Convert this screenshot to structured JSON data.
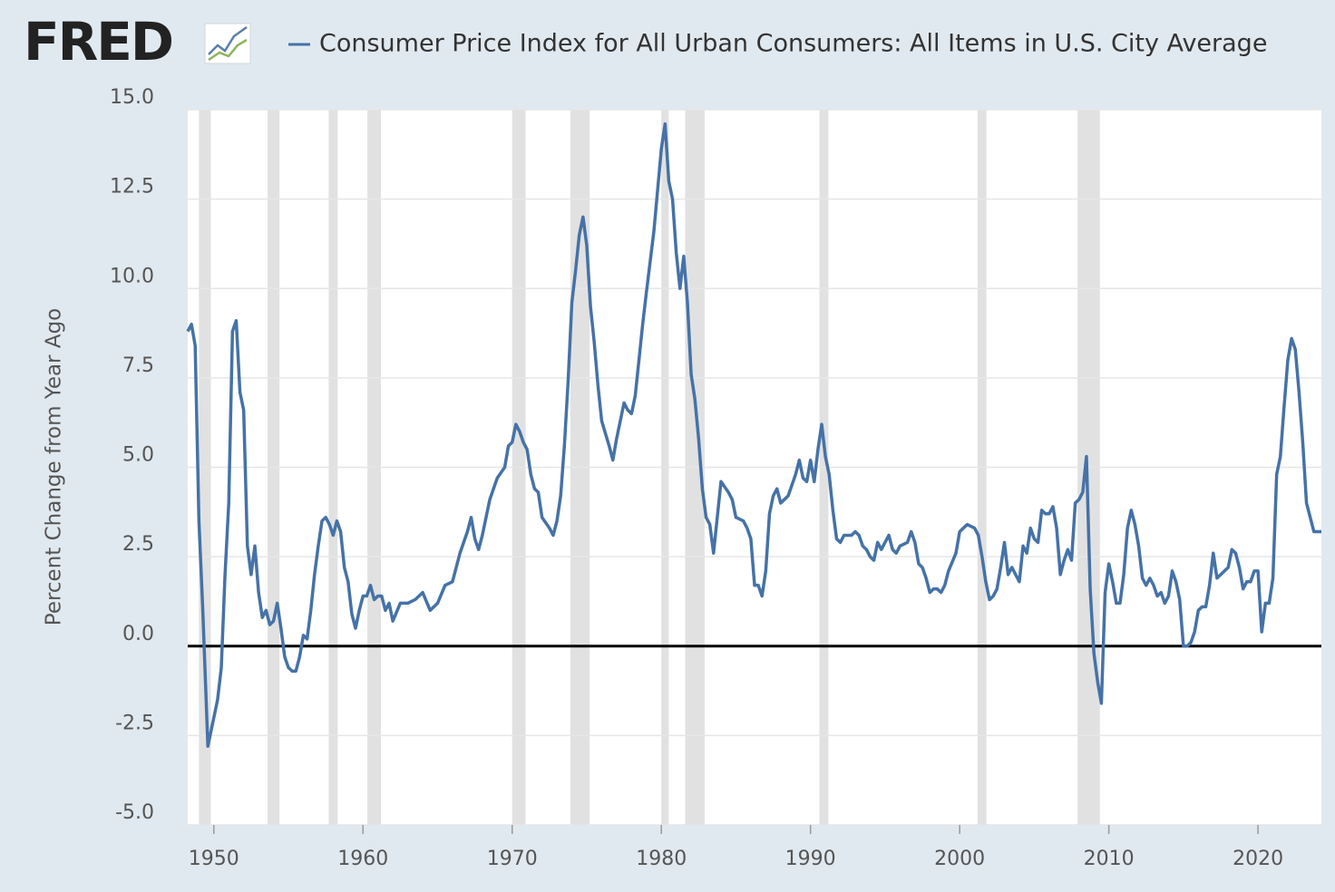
{
  "chart_data": {
    "type": "line",
    "logo": "FRED",
    "title": "Consumer Price Index for All Urban Consumers: All Items in U.S. City Average",
    "ylabel": "Percent Change from Year Ago",
    "xlim": [
      1948.25,
      2024.25
    ],
    "xticks": [
      1950,
      1960,
      1970,
      1980,
      1990,
      2000,
      2010,
      2020
    ],
    "ylim": [
      -5,
      15
    ],
    "yticks": [
      {
        "value": -5,
        "label": "-5.0"
      },
      {
        "value": -2.5,
        "label": "-2.5"
      },
      {
        "value": 0,
        "label": "0.0"
      },
      {
        "value": 2.5,
        "label": "2.5"
      },
      {
        "value": 5,
        "label": "5.0"
      },
      {
        "value": 7.5,
        "label": "7.5"
      },
      {
        "value": 10,
        "label": "10.0"
      },
      {
        "value": 12.5,
        "label": "12.5"
      },
      {
        "value": 15,
        "label": "15.0"
      }
    ],
    "grid": true,
    "zero_line": 0,
    "recessions": [
      [
        1949.0,
        1949.8
      ],
      [
        1953.6,
        1954.4
      ],
      [
        1957.7,
        1958.3
      ],
      [
        1960.3,
        1961.2
      ],
      [
        1970.0,
        1970.9
      ],
      [
        1973.9,
        1975.2
      ],
      [
        1980.0,
        1980.5
      ],
      [
        1981.6,
        1982.9
      ],
      [
        1990.6,
        1991.2
      ],
      [
        2001.2,
        2001.8
      ],
      [
        2007.9,
        2009.4
      ]
    ],
    "x": [
      1948.25,
      1948.5,
      1948.75,
      1949,
      1949.25,
      1949.6,
      1950,
      1950.25,
      1950.5,
      1950.75,
      1951,
      1951.25,
      1951.5,
      1951.75,
      1952,
      1952.25,
      1952.5,
      1952.75,
      1953,
      1953.25,
      1953.5,
      1953.75,
      1954,
      1954.25,
      1954.5,
      1954.75,
      1955,
      1955.25,
      1955.5,
      1955.75,
      1956,
      1956.25,
      1956.5,
      1956.75,
      1957,
      1957.25,
      1957.5,
      1957.75,
      1958,
      1958.25,
      1958.5,
      1958.75,
      1959,
      1959.25,
      1959.5,
      1959.75,
      1960,
      1960.25,
      1960.5,
      1960.75,
      1961,
      1961.25,
      1961.5,
      1961.75,
      1962,
      1962.5,
      1963,
      1963.5,
      1964,
      1964.5,
      1965,
      1965.5,
      1966,
      1966.5,
      1967,
      1967.25,
      1967.5,
      1967.75,
      1968,
      1968.5,
      1969,
      1969.5,
      1969.75,
      1970,
      1970.25,
      1970.5,
      1970.75,
      1971,
      1971.25,
      1971.5,
      1971.75,
      1972,
      1972.5,
      1972.75,
      1973,
      1973.25,
      1973.5,
      1973.75,
      1974,
      1974.25,
      1974.5,
      1974.75,
      1975,
      1975.25,
      1975.5,
      1975.75,
      1976,
      1976.5,
      1976.75,
      1977,
      1977.5,
      1977.75,
      1978,
      1978.25,
      1978.5,
      1978.75,
      1979,
      1979.5,
      1980,
      1980.25,
      1980.5,
      1980.75,
      1981,
      1981.25,
      1981.5,
      1981.75,
      1982,
      1982.25,
      1982.5,
      1982.75,
      1983,
      1983.25,
      1983.5,
      1983.75,
      1984,
      1984.5,
      1984.75,
      1985,
      1985.5,
      1985.75,
      1986,
      1986.25,
      1986.5,
      1986.75,
      1987,
      1987.25,
      1987.5,
      1987.75,
      1988,
      1988.5,
      1989,
      1989.25,
      1989.5,
      1989.75,
      1990,
      1990.25,
      1990.5,
      1990.75,
      1991,
      1991.25,
      1991.5,
      1991.75,
      1992,
      1992.25,
      1992.75,
      1993,
      1993.25,
      1993.5,
      1993.75,
      1994,
      1994.25,
      1994.5,
      1994.75,
      1995,
      1995.25,
      1995.5,
      1995.75,
      1996,
      1996.5,
      1996.75,
      1997,
      1997.25,
      1997.5,
      1997.75,
      1998,
      1998.25,
      1998.5,
      1998.75,
      1999,
      1999.25,
      1999.75,
      2000,
      2000.25,
      2000.5,
      2001,
      2001.25,
      2001.5,
      2001.75,
      2002,
      2002.25,
      2002.5,
      2002.75,
      2003,
      2003.25,
      2003.5,
      2003.75,
      2004,
      2004.25,
      2004.5,
      2004.75,
      2005,
      2005.25,
      2005.5,
      2005.75,
      2006,
      2006.25,
      2006.5,
      2006.75,
      2007,
      2007.25,
      2007.5,
      2007.75,
      2008,
      2008.25,
      2008.5,
      2008.75,
      2009,
      2009.25,
      2009.5,
      2009.75,
      2010,
      2010.25,
      2010.5,
      2010.75,
      2011,
      2011.25,
      2011.5,
      2011.75,
      2012,
      2012.25,
      2012.5,
      2012.75,
      2013,
      2013.25,
      2013.5,
      2013.75,
      2014,
      2014.25,
      2014.5,
      2014.75,
      2015,
      2015.25,
      2015.5,
      2015.75,
      2016,
      2016.25,
      2016.5,
      2016.75,
      2017,
      2017.25,
      2017.5,
      2017.75,
      2018,
      2018.25,
      2018.5,
      2018.75,
      2019,
      2019.25,
      2019.5,
      2019.75,
      2020,
      2020.25,
      2020.5,
      2020.75,
      2021,
      2021.25,
      2021.5,
      2021.75,
      2022,
      2022.25,
      2022.5,
      2022.75,
      2023,
      2023.25,
      2023.5,
      2023.75,
      2024,
      2024.25
    ],
    "series": [
      {
        "name": "Consumer Price Index for All Urban Consumers: All Items in U.S. City Average",
        "color": "#4572a7",
        "values": [
          8.8,
          9.0,
          8.4,
          3.5,
          1.1,
          -2.8,
          -2.0,
          -1.5,
          -0.6,
          2.0,
          4.0,
          8.8,
          9.1,
          7.1,
          6.6,
          2.8,
          2.0,
          2.8,
          1.5,
          0.8,
          1.0,
          0.6,
          0.7,
          1.2,
          0.5,
          -0.3,
          -0.6,
          -0.7,
          -0.7,
          -0.3,
          0.3,
          0.2,
          1.0,
          2.0,
          2.8,
          3.5,
          3.6,
          3.4,
          3.1,
          3.5,
          3.2,
          2.2,
          1.8,
          0.9,
          0.5,
          1.0,
          1.4,
          1.4,
          1.7,
          1.3,
          1.4,
          1.4,
          1.0,
          1.2,
          0.7,
          1.2,
          1.2,
          1.3,
          1.5,
          1.0,
          1.2,
          1.7,
          1.8,
          2.6,
          3.2,
          3.6,
          3.0,
          2.7,
          3.1,
          4.1,
          4.7,
          5.0,
          5.6,
          5.7,
          6.2,
          6.0,
          5.7,
          5.5,
          4.8,
          4.4,
          4.3,
          3.6,
          3.3,
          3.1,
          3.5,
          4.2,
          5.6,
          7.4,
          9.6,
          10.5,
          11.5,
          12.0,
          11.2,
          9.5,
          8.5,
          7.3,
          6.3,
          5.6,
          5.2,
          5.8,
          6.8,
          6.6,
          6.5,
          7.0,
          8.0,
          9.0,
          9.9,
          11.6,
          13.9,
          14.6,
          13.0,
          12.5,
          11.0,
          10.0,
          10.9,
          9.6,
          7.6,
          6.9,
          5.8,
          4.4,
          3.6,
          3.4,
          2.6,
          3.6,
          4.6,
          4.3,
          4.1,
          3.6,
          3.5,
          3.3,
          3.0,
          1.7,
          1.7,
          1.4,
          2.1,
          3.7,
          4.2,
          4.4,
          4.0,
          4.2,
          4.8,
          5.2,
          4.7,
          4.6,
          5.2,
          4.6,
          5.5,
          6.2,
          5.3,
          4.8,
          3.8,
          3.0,
          2.9,
          3.1,
          3.1,
          3.2,
          3.1,
          2.8,
          2.7,
          2.5,
          2.4,
          2.9,
          2.7,
          2.9,
          3.1,
          2.7,
          2.6,
          2.8,
          2.9,
          3.2,
          2.9,
          2.3,
          2.2,
          1.9,
          1.5,
          1.6,
          1.6,
          1.5,
          1.7,
          2.1,
          2.6,
          3.2,
          3.3,
          3.4,
          3.3,
          3.1,
          2.5,
          1.8,
          1.3,
          1.4,
          1.6,
          2.2,
          2.9,
          2.0,
          2.2,
          2.0,
          1.8,
          2.8,
          2.6,
          3.3,
          3.0,
          2.9,
          3.8,
          3.7,
          3.7,
          3.9,
          3.3,
          2.0,
          2.4,
          2.7,
          2.4,
          4.0,
          4.1,
          4.3,
          5.3,
          1.6,
          -0.2,
          -1.0,
          -1.6,
          1.5,
          2.3,
          1.8,
          1.2,
          1.2,
          2.0,
          3.3,
          3.8,
          3.4,
          2.8,
          1.9,
          1.7,
          1.9,
          1.7,
          1.4,
          1.5,
          1.2,
          1.4,
          2.1,
          1.8,
          1.3,
          0.0,
          0.0,
          0.1,
          0.4,
          1.0,
          1.1,
          1.1,
          1.7,
          2.6,
          1.9,
          2.0,
          2.1,
          2.2,
          2.7,
          2.6,
          2.2,
          1.6,
          1.8,
          1.8,
          2.1,
          2.1,
          0.4,
          1.2,
          1.2,
          1.9,
          4.8,
          5.3,
          6.7,
          8.0,
          8.6,
          8.3,
          7.1,
          5.7,
          4.0,
          3.6,
          3.2,
          3.2,
          3.2
        ]
      }
    ]
  }
}
